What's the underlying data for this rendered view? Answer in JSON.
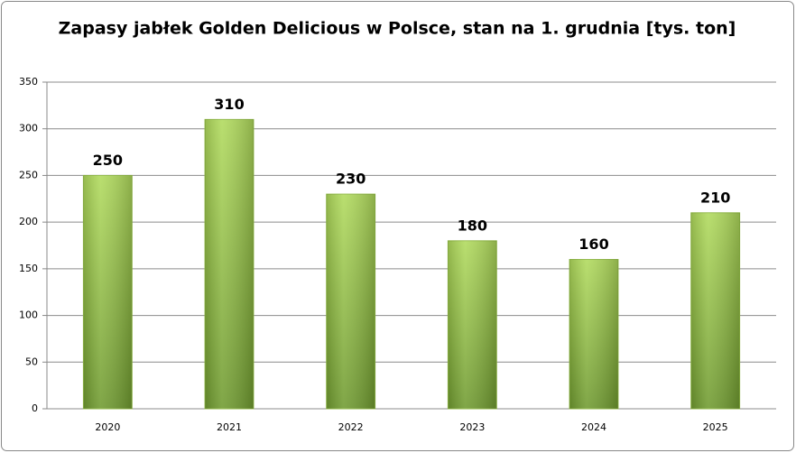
{
  "chart_data": {
    "type": "bar",
    "title": "Zapasy jabłek Golden Delicious w Polsce, stan na 1. grudnia [tys. ton]",
    "categories": [
      "2020",
      "2021",
      "2022",
      "2023",
      "2024",
      "2025"
    ],
    "values": [
      250,
      310,
      230,
      180,
      160,
      210
    ],
    "ylim": [
      0,
      350
    ],
    "yticks": [
      0,
      50,
      100,
      150,
      200,
      250,
      300,
      350
    ],
    "grid": true
  }
}
